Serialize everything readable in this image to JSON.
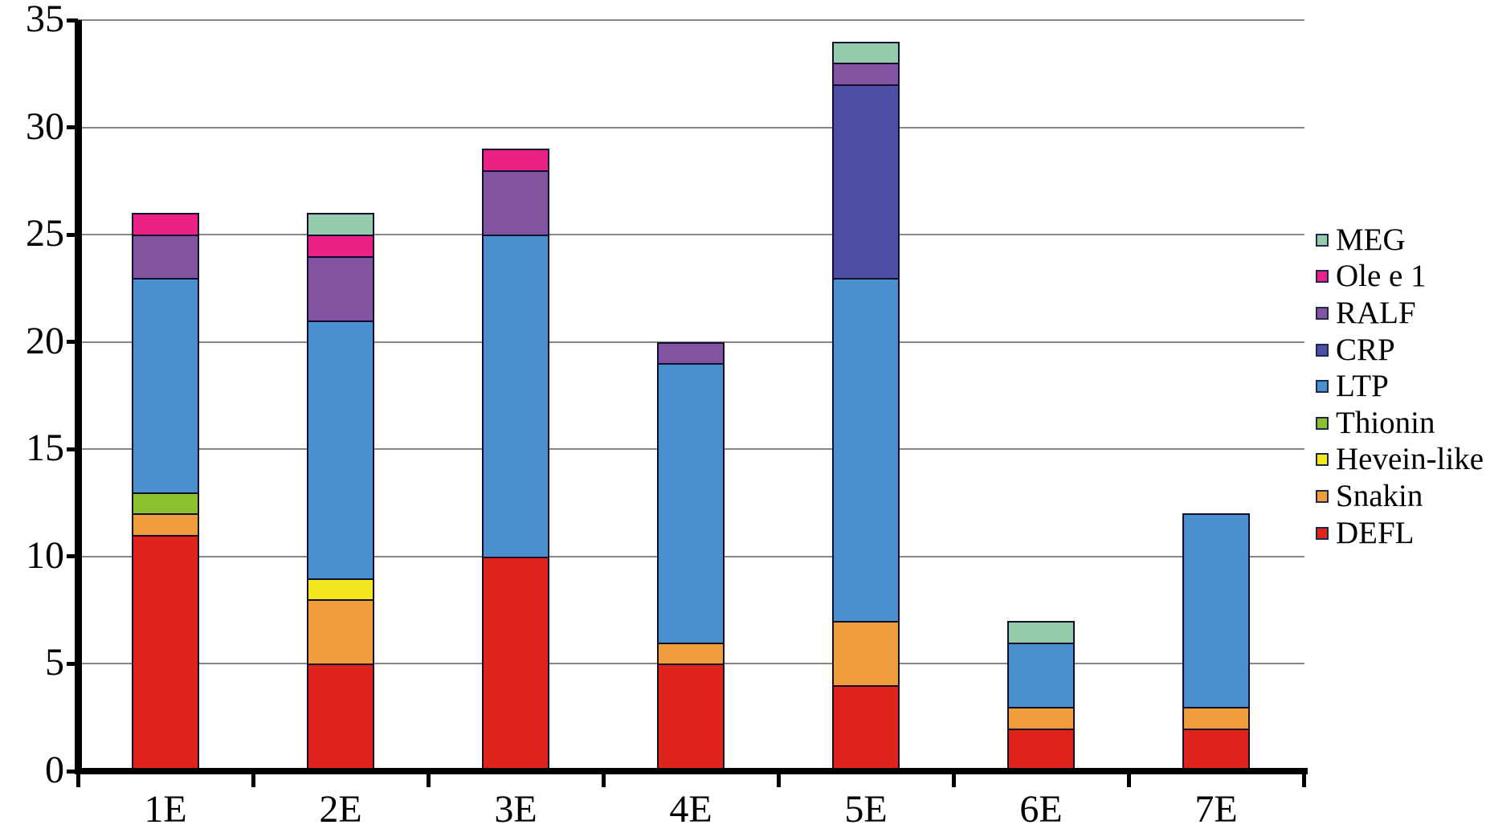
{
  "chart_data": {
    "type": "bar",
    "stacked": true,
    "title": "",
    "xlabel": "",
    "ylabel": "",
    "categories": [
      "1E",
      "2E",
      "3E",
      "4E",
      "5E",
      "6E",
      "7E"
    ],
    "series": [
      {
        "name": "DEFL",
        "color": "#e1241b",
        "values": [
          11,
          5,
          10,
          5,
          4,
          2,
          2
        ]
      },
      {
        "name": "Snakin",
        "color": "#f19d3b",
        "values": [
          1,
          3,
          0,
          1,
          3,
          1,
          1
        ]
      },
      {
        "name": "Hevein-like",
        "color": "#f3e81f",
        "values": [
          0,
          1,
          0,
          0,
          0,
          0,
          0
        ]
      },
      {
        "name": "Thionin",
        "color": "#8cc02d",
        "values": [
          1,
          0,
          0,
          0,
          0,
          0,
          0
        ]
      },
      {
        "name": "LTP",
        "color": "#4b90ce",
        "values": [
          10,
          12,
          15,
          13,
          16,
          3,
          9
        ]
      },
      {
        "name": "CRP",
        "color": "#4c4da3",
        "values": [
          0,
          0,
          0,
          0,
          9,
          0,
          0
        ]
      },
      {
        "name": "RALF",
        "color": "#8253a1",
        "values": [
          2,
          3,
          3,
          1,
          1,
          0,
          0
        ]
      },
      {
        "name": "Ole e 1",
        "color": "#ec2186",
        "values": [
          1,
          1,
          1,
          0,
          0,
          0,
          0
        ]
      },
      {
        "name": "MEG",
        "color": "#95cbab",
        "values": [
          0,
          1,
          0,
          0,
          1,
          1,
          0
        ]
      }
    ],
    "stack_totals": [
      26,
      26,
      29,
      20,
      34,
      7,
      12
    ],
    "ylim": [
      0,
      35
    ],
    "y_ticks": [
      0,
      5,
      10,
      15,
      20,
      25,
      30,
      35
    ],
    "grid": "horizontal",
    "legend_position": "right",
    "legend_order_top_to_bottom": [
      "MEG",
      "Ole e 1",
      "RALF",
      "CRP",
      "LTP",
      "Thionin",
      "Hevein-like",
      "Snakin",
      "DEFL"
    ],
    "colors": {
      "axis": "#000000",
      "gridline": "#878787",
      "background": "#ffffff",
      "bar_border": "#10102a"
    }
  }
}
